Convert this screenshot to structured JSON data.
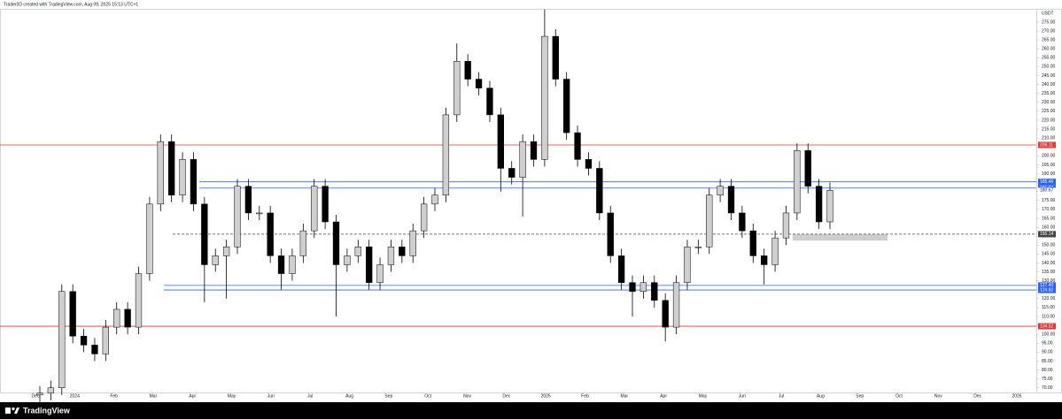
{
  "header": "Trader3D created with TradingView.com, Aug 09, 2025 15:13 UTC+1",
  "footer_brand": "TradingView",
  "chart_data": {
    "type": "candlestick",
    "currency": "USDT",
    "x_labels": [
      "Dec",
      "2024",
      "Feb",
      "Mar",
      "Apr",
      "May",
      "Jun",
      "Jul",
      "Aug",
      "Sep",
      "Oct",
      "Nov",
      "Dec",
      "2025",
      "Feb",
      "Mar",
      "Apr",
      "May",
      "Jun",
      "Jul",
      "Aug",
      "Sep",
      "Oct",
      "Nov",
      "Dec",
      "2026"
    ],
    "open": [
      66,
      67,
      70,
      124,
      99,
      94,
      89,
      104,
      114,
      104,
      134,
      173,
      208,
      178,
      198,
      173,
      139,
      144,
      149,
      183,
      168,
      168,
      144,
      134,
      144,
      158,
      183,
      163,
      139,
      144,
      149,
      129,
      139,
      149,
      144,
      158,
      173,
      178,
      223,
      253,
      243,
      238,
      223,
      193,
      188,
      208,
      198,
      267,
      243,
      213,
      198,
      193,
      168,
      144,
      129,
      124,
      129,
      119,
      104,
      129,
      149,
      149,
      178,
      183,
      168,
      158,
      144,
      139,
      154,
      168,
      203,
      183,
      163
    ],
    "high": [
      71,
      74,
      128,
      128,
      103,
      98,
      108,
      118,
      118,
      138,
      177,
      212,
      212,
      202,
      202,
      177,
      148,
      153,
      187,
      187,
      172,
      172,
      148,
      148,
      162,
      187,
      187,
      167,
      148,
      153,
      153,
      143,
      153,
      153,
      162,
      177,
      182,
      227,
      263,
      257,
      247,
      242,
      227,
      197,
      212,
      212,
      282,
      271,
      247,
      217,
      202,
      197,
      172,
      148,
      133,
      133,
      133,
      123,
      133,
      153,
      153,
      182,
      187,
      187,
      172,
      162,
      148,
      158,
      172,
      207,
      207,
      187,
      185
    ],
    "low": [
      62,
      63,
      66,
      95,
      90,
      85,
      85,
      100,
      100,
      100,
      130,
      169,
      174,
      174,
      169,
      118,
      135,
      120,
      145,
      164,
      164,
      140,
      125,
      130,
      140,
      154,
      159,
      110,
      135,
      140,
      125,
      125,
      135,
      140,
      140,
      154,
      169,
      174,
      219,
      239,
      234,
      219,
      180,
      184,
      166,
      194,
      194,
      239,
      209,
      194,
      189,
      164,
      140,
      125,
      110,
      120,
      115,
      96,
      100,
      125,
      145,
      145,
      174,
      164,
      154,
      140,
      128,
      135,
      150,
      164,
      179,
      159,
      159
    ],
    "close": [
      67,
      70,
      124,
      99,
      94,
      89,
      104,
      114,
      104,
      134,
      173,
      208,
      178,
      198,
      173,
      139,
      144,
      149,
      183,
      168,
      168,
      144,
      134,
      144,
      158,
      183,
      163,
      139,
      144,
      149,
      129,
      139,
      149,
      144,
      158,
      173,
      178,
      223,
      253,
      243,
      238,
      223,
      193,
      188,
      208,
      198,
      267,
      243,
      213,
      198,
      193,
      168,
      144,
      129,
      124,
      129,
      119,
      104,
      129,
      149,
      149,
      178,
      183,
      168,
      158,
      144,
      139,
      154,
      168,
      203,
      183,
      163,
      180.67
    ],
    "up_color": "#cfcfcf",
    "down_color": "#000000",
    "wick_color": "#000000",
    "ylim": [
      66.9,
      282.4
    ],
    "yticks": [
      {
        "value": 70,
        "label": "70.00"
      },
      {
        "value": 75,
        "label": "75.00"
      },
      {
        "value": 80,
        "label": "80.00"
      },
      {
        "value": 85,
        "label": "85.00"
      },
      {
        "value": 90,
        "label": "90.00"
      },
      {
        "value": 95,
        "label": "95.00"
      },
      {
        "value": 100,
        "label": "100.00"
      },
      {
        "value": 105,
        "label": "105.00"
      },
      {
        "value": 110,
        "label": "110.00"
      },
      {
        "value": 115,
        "label": "115.00"
      },
      {
        "value": 120,
        "label": "120.00"
      },
      {
        "value": 125,
        "label": "125.00"
      },
      {
        "value": 130,
        "label": "130.00"
      },
      {
        "value": 135,
        "label": "135.00"
      },
      {
        "value": 140,
        "label": "140.00"
      },
      {
        "value": 145,
        "label": "145.00"
      },
      {
        "value": 150,
        "label": "150.00"
      },
      {
        "value": 155,
        "label": "155.00"
      },
      {
        "value": 160,
        "label": "160.00"
      },
      {
        "value": 165,
        "label": "165.00"
      },
      {
        "value": 170,
        "label": "170.00"
      },
      {
        "value": 175,
        "label": "175.00"
      },
      {
        "value": 180,
        "label": "180.00"
      },
      {
        "value": 185,
        "label": "185.00"
      },
      {
        "value": 190,
        "label": "190.00"
      },
      {
        "value": 195,
        "label": "195.00"
      },
      {
        "value": 200,
        "label": "200.00"
      },
      {
        "value": 205,
        "label": "205.00"
      },
      {
        "value": 210,
        "label": "210.00"
      },
      {
        "value": 215,
        "label": "215.00"
      },
      {
        "value": 220,
        "label": "220.00"
      },
      {
        "value": 225,
        "label": "225.00"
      },
      {
        "value": 230,
        "label": "230.00"
      },
      {
        "value": 235,
        "label": "235.00"
      },
      {
        "value": 240,
        "label": "240.00"
      },
      {
        "value": 245,
        "label": "245.00"
      },
      {
        "value": 250,
        "label": "250.00"
      },
      {
        "value": 255,
        "label": "255.00"
      },
      {
        "value": 260,
        "label": "260.00"
      },
      {
        "value": 265,
        "label": "265.00"
      },
      {
        "value": 270,
        "label": "270.00"
      },
      {
        "value": 275,
        "label": "275.00"
      }
    ],
    "levels": {
      "values": [
        206.11,
        185.46,
        181.97,
        156.14,
        127.4,
        124.82,
        104.52
      ],
      "value_labels": [
        "206.11",
        "185.46",
        "181.97",
        "156.14",
        "127.40",
        "124.82",
        "104.52"
      ],
      "colors": [
        "#e53935",
        "#2962ff",
        "#2962ff",
        "#444444",
        "#2962ff",
        "#2962ff",
        "#e53935"
      ],
      "dashed": [
        false,
        false,
        false,
        true,
        false,
        false,
        false
      ]
    },
    "zone": {
      "low": 152.5,
      "high": 156.14,
      "color": "#cfcfcf"
    }
  }
}
